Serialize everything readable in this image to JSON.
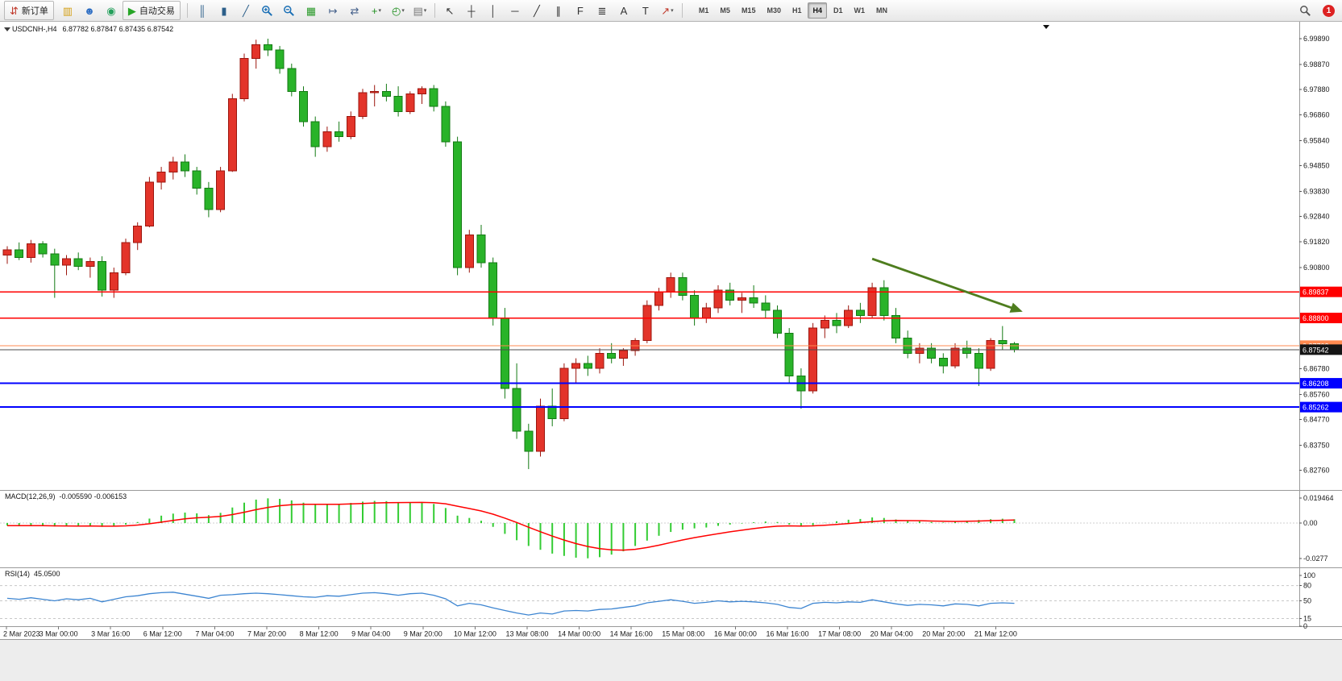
{
  "toolbar": {
    "new_order": {
      "label": "新订单",
      "icon": {
        "name": "new-order-icon",
        "glyph": "⇵",
        "color": "#c0392b"
      }
    },
    "quick_icons": [
      {
        "name": "coins-icon",
        "glyph": "▥",
        "color": "#d4a017"
      },
      {
        "name": "profile-icon",
        "glyph": "☻",
        "color": "#2f6fc4"
      },
      {
        "name": "signal-icon",
        "glyph": "◉",
        "color": "#25a05c"
      }
    ],
    "auto_trading": {
      "label": "自动交易",
      "icon": {
        "name": "auto-trading-icon",
        "glyph": "▶",
        "color": "#27a527"
      }
    },
    "chart_tools": [
      {
        "name": "bar-chart-icon",
        "glyph": "║",
        "color": "#2c5f8a"
      },
      {
        "name": "candlestick-chart-icon",
        "glyph": "▮",
        "color": "#2c5f8a"
      },
      {
        "name": "line-chart-icon",
        "glyph": "╱",
        "color": "#2c5f8a"
      },
      {
        "name": "zoom-in-icon",
        "glyph": "svg-zoom-in",
        "color": "#1a6fb5"
      },
      {
        "name": "zoom-out-icon",
        "glyph": "svg-zoom-out",
        "color": "#1a6fb5"
      },
      {
        "name": "tile-windows-icon",
        "glyph": "▦",
        "color": "#2a9a2a"
      },
      {
        "name": "auto-scroll-icon",
        "glyph": "↦",
        "color": "#44608a"
      },
      {
        "name": "chart-shift-icon",
        "glyph": "⇄",
        "color": "#44608a"
      },
      {
        "name": "new-chart-icon",
        "glyph": "+",
        "color": "#1f8f1f",
        "dropdown": true
      },
      {
        "name": "profiles-icon",
        "glyph": "◴",
        "color": "#1f8f1f",
        "dropdown": true
      },
      {
        "name": "templates-icon",
        "glyph": "▤",
        "color": "#777777",
        "dropdown": true
      }
    ],
    "draw_tools": [
      {
        "name": "cursor-icon",
        "glyph": "↖",
        "color": "#333333"
      },
      {
        "name": "crosshair-icon",
        "glyph": "┼",
        "color": "#333333"
      },
      {
        "name": "vertical-line-icon",
        "glyph": "│",
        "color": "#333333"
      },
      {
        "name": "horizontal-line-icon",
        "glyph": "─",
        "color": "#333333"
      },
      {
        "name": "trendline-icon",
        "glyph": "╱",
        "color": "#333333"
      },
      {
        "name": "channel-icon",
        "glyph": "∥",
        "color": "#333333"
      },
      {
        "name": "fibonacci-icon",
        "glyph": "F",
        "color": "#333333"
      },
      {
        "name": "objects-list-icon",
        "glyph": "≣",
        "color": "#333333"
      },
      {
        "name": "text-icon",
        "glyph": "A",
        "color": "#333333"
      },
      {
        "name": "text-label-icon",
        "glyph": "T",
        "color": "#333333"
      },
      {
        "name": "arrow-objects-icon",
        "glyph": "↗",
        "color": "#c0392b",
        "dropdown": true
      }
    ],
    "timeframes": {
      "options": [
        "M1",
        "M5",
        "M15",
        "M30",
        "H1",
        "H4",
        "D1",
        "W1",
        "MN"
      ],
      "active": "H4"
    },
    "notifications": {
      "count": "1"
    }
  },
  "chart": {
    "symbol_period": "USDCNH-,H4",
    "ohlc": "6.87782 6.87847 6.87435 6.87542"
  },
  "chart_data": {
    "type": "candlestick",
    "symbol": "USDCNH-",
    "timeframe": "H4",
    "up_color": "#e3342a",
    "down_color": "#29b329",
    "candles": [
      [
        6.913,
        6.9165,
        6.9095,
        6.915
      ],
      [
        6.915,
        6.918,
        6.911,
        6.912
      ],
      [
        6.912,
        6.919,
        6.91,
        6.9175
      ],
      [
        6.9175,
        6.9185,
        6.912,
        6.9135
      ],
      [
        6.9135,
        6.9155,
        6.896,
        6.909
      ],
      [
        6.909,
        6.913,
        6.905,
        6.9115
      ],
      [
        6.9115,
        6.914,
        6.907,
        6.9085
      ],
      [
        6.9085,
        6.912,
        6.904,
        6.9105
      ],
      [
        6.9105,
        6.9125,
        6.8965,
        6.899
      ],
      [
        6.899,
        6.908,
        6.896,
        6.906
      ],
      [
        6.906,
        6.9195,
        6.905,
        6.918
      ],
      [
        6.918,
        6.926,
        6.915,
        6.9245
      ],
      [
        6.9245,
        6.944,
        6.924,
        6.942
      ],
      [
        6.942,
        6.948,
        6.939,
        6.946
      ],
      [
        6.946,
        6.952,
        6.943,
        6.95
      ],
      [
        6.95,
        6.953,
        6.944,
        6.9465
      ],
      [
        6.9465,
        6.948,
        6.937,
        6.9395
      ],
      [
        6.9395,
        6.942,
        6.928,
        6.931
      ],
      [
        6.931,
        6.948,
        6.93,
        6.9465
      ],
      [
        6.9465,
        6.977,
        6.946,
        6.975
      ],
      [
        6.975,
        6.993,
        6.974,
        6.991
      ],
      [
        6.991,
        6.9985,
        6.987,
        6.9965
      ],
      [
        6.9965,
        6.9989,
        6.992,
        6.9945
      ],
      [
        6.9945,
        6.996,
        6.985,
        6.987
      ],
      [
        6.987,
        6.989,
        6.976,
        6.978
      ],
      [
        6.978,
        6.98,
        6.964,
        6.966
      ],
      [
        6.966,
        6.968,
        6.952,
        6.956
      ],
      [
        6.956,
        6.964,
        6.954,
        6.962
      ],
      [
        6.962,
        6.966,
        6.958,
        6.96
      ],
      [
        6.96,
        6.97,
        6.959,
        6.968
      ],
      [
        6.968,
        6.979,
        6.967,
        6.9775
      ],
      [
        6.9775,
        6.9805,
        6.972,
        6.978
      ],
      [
        6.978,
        6.981,
        6.974,
        6.976
      ],
      [
        6.976,
        6.98,
        6.968,
        6.97
      ],
      [
        6.97,
        6.978,
        6.969,
        6.977
      ],
      [
        6.977,
        6.98,
        6.973,
        6.979
      ],
      [
        6.979,
        6.9805,
        6.97,
        6.972
      ],
      [
        6.972,
        6.974,
        6.956,
        6.958
      ],
      [
        6.958,
        6.96,
        6.905,
        6.908
      ],
      [
        6.908,
        6.923,
        6.906,
        6.921
      ],
      [
        6.921,
        6.925,
        6.908,
        6.91
      ],
      [
        6.91,
        6.912,
        6.885,
        6.888
      ],
      [
        6.888,
        6.892,
        6.856,
        6.86
      ],
      [
        6.86,
        6.87,
        6.84,
        6.843
      ],
      [
        6.843,
        6.846,
        6.828,
        6.835
      ],
      [
        6.835,
        6.856,
        6.833,
        6.853
      ],
      [
        6.853,
        6.86,
        6.845,
        6.848
      ],
      [
        6.848,
        6.87,
        6.847,
        6.868
      ],
      [
        6.868,
        6.872,
        6.862,
        6.87
      ],
      [
        6.87,
        6.873,
        6.865,
        6.868
      ],
      [
        6.868,
        6.876,
        6.866,
        6.874
      ],
      [
        6.874,
        6.878,
        6.87,
        6.872
      ],
      [
        6.872,
        6.876,
        6.869,
        6.875
      ],
      [
        6.875,
        6.88,
        6.873,
        6.879
      ],
      [
        6.879,
        6.895,
        6.878,
        6.893
      ],
      [
        6.893,
        6.9,
        6.891,
        6.8985
      ],
      [
        6.8985,
        6.906,
        6.896,
        6.904
      ],
      [
        6.904,
        6.906,
        6.895,
        6.897
      ],
      [
        6.897,
        6.899,
        6.885,
        6.888
      ],
      [
        6.888,
        6.894,
        6.886,
        6.892
      ],
      [
        6.892,
        6.901,
        6.89,
        6.899
      ],
      [
        6.899,
        6.902,
        6.893,
        6.895
      ],
      [
        6.895,
        6.898,
        6.89,
        6.896
      ],
      [
        6.896,
        6.901,
        6.892,
        6.894
      ],
      [
        6.894,
        6.897,
        6.888,
        6.891
      ],
      [
        6.891,
        6.893,
        6.88,
        6.882
      ],
      [
        6.882,
        6.884,
        6.862,
        6.865
      ],
      [
        6.865,
        6.868,
        6.852,
        6.859
      ],
      [
        6.859,
        6.886,
        6.858,
        6.884
      ],
      [
        6.884,
        6.889,
        6.88,
        6.887
      ],
      [
        6.887,
        6.89,
        6.882,
        6.885
      ],
      [
        6.885,
        6.893,
        6.884,
        6.891
      ],
      [
        6.891,
        6.894,
        6.886,
        6.889
      ],
      [
        6.889,
        6.902,
        6.888,
        6.9
      ],
      [
        6.9,
        6.903,
        6.887,
        6.889
      ],
      [
        6.889,
        6.892,
        6.878,
        6.88
      ],
      [
        6.88,
        6.883,
        6.872,
        6.874
      ],
      [
        6.874,
        6.878,
        6.87,
        6.876
      ],
      [
        6.876,
        6.878,
        6.87,
        6.872
      ],
      [
        6.872,
        6.874,
        6.866,
        6.869
      ],
      [
        6.869,
        6.878,
        6.868,
        6.876
      ],
      [
        6.876,
        6.879,
        6.872,
        6.874
      ],
      [
        6.874,
        6.876,
        6.861,
        6.868
      ],
      [
        6.868,
        6.88,
        6.867,
        6.879
      ],
      [
        6.879,
        6.8848,
        6.8755,
        6.8778
      ],
      [
        6.87782,
        6.87847,
        6.87435,
        6.87542
      ]
    ],
    "price_axis_labels": [
      "6.99890",
      "6.98870",
      "6.97880",
      "6.96860",
      "6.95840",
      "6.94850",
      "6.93830",
      "6.92840",
      "6.91820",
      "6.90800",
      "6.86780",
      "6.85760",
      "6.84770",
      "6.83750",
      "6.82760"
    ],
    "levels": [
      {
        "price": 6.89837,
        "label": "6.89837",
        "color": "#ff0000",
        "width": 1.4
      },
      {
        "price": 6.888,
        "label": "6.88800",
        "color": "#ff0000",
        "width": 1.4
      },
      {
        "price": 6.87702,
        "label": "6.87702",
        "color": "#ff8a50",
        "width": 1.2
      },
      {
        "price": 6.86208,
        "label": "6.86208",
        "color": "#0000ff",
        "width": 1.8
      },
      {
        "price": 6.85262,
        "label": "6.85262",
        "color": "#0000ff",
        "width": 1.8
      }
    ],
    "current_price": {
      "price": 6.87542,
      "label": "6.87542",
      "line_color": "#4d4d4d",
      "badge_bg": "#141414"
    },
    "trend_arrow": {
      "from_bar": 73,
      "from_price": 6.9115,
      "to_bar": 85.7,
      "to_price": 6.8905,
      "color": "#4e7d1e"
    },
    "macd": {
      "name": "MACD(12,26,9)",
      "values": "-0.005590 -0.006153",
      "axis_labels": [
        "0.019464",
        "0.00",
        "-0.0277"
      ],
      "histogram_color": "#33cc33",
      "signal_color": "#ff0000",
      "histogram": [
        -0.002,
        -0.0024,
        -0.002,
        -0.0022,
        -0.0027,
        -0.0024,
        -0.0026,
        -0.0022,
        -0.003,
        -0.0026,
        -0.0012,
        0.0008,
        0.0035,
        0.0058,
        0.0074,
        0.0082,
        0.0076,
        0.0062,
        0.008,
        0.0122,
        0.016,
        0.0184,
        0.0194,
        0.019,
        0.0178,
        0.016,
        0.0146,
        0.0146,
        0.015,
        0.0158,
        0.0168,
        0.0174,
        0.0172,
        0.0163,
        0.0162,
        0.0165,
        0.015,
        0.0118,
        0.0058,
        0.004,
        0.0018,
        -0.003,
        -0.0085,
        -0.0135,
        -0.018,
        -0.021,
        -0.024,
        -0.0258,
        -0.0272,
        -0.0277,
        -0.0268,
        -0.0248,
        -0.0222,
        -0.018,
        -0.0138,
        -0.01,
        -0.007,
        -0.0052,
        -0.0042,
        -0.0035,
        -0.0022,
        -0.0012,
        -0.0004,
        0.0006,
        0.0012,
        0.0008,
        -0.0012,
        -0.0028,
        -0.0018,
        0.0002,
        0.0014,
        0.0026,
        0.0032,
        0.0044,
        0.004,
        0.0028,
        0.0018,
        0.0014,
        0.0008,
        0.0004,
        0.001,
        0.0018,
        0.0024,
        0.003,
        0.0034,
        0.003
      ]
    },
    "rsi": {
      "name": "RSI(14)",
      "value": "45.0500",
      "axis_labels": [
        "100",
        "80",
        "50",
        "15",
        "0"
      ],
      "levels": [
        80,
        50,
        15
      ],
      "line_color": "#3d85d1",
      "values": [
        55,
        53,
        56,
        53,
        50,
        54,
        52,
        55,
        48,
        53,
        58,
        60,
        64,
        66,
        67,
        63,
        59,
        55,
        61,
        62,
        64,
        65,
        64,
        62,
        60,
        58,
        57,
        60,
        59,
        62,
        65,
        66,
        64,
        61,
        64,
        65,
        61,
        54,
        40,
        45,
        42,
        36,
        31,
        26,
        22,
        26,
        24,
        30,
        31,
        30,
        33,
        34,
        37,
        40,
        46,
        49,
        52,
        49,
        45,
        47,
        50,
        48,
        49,
        48,
        46,
        43,
        37,
        35,
        45,
        47,
        46,
        48,
        47,
        52,
        48,
        44,
        41,
        43,
        42,
        40,
        44,
        43,
        40,
        45,
        46,
        45.05
      ]
    },
    "time_labels": [
      "2 Mar 2023",
      "3 Mar 00:00",
      "3 Mar 16:00",
      "6 Mar 12:00",
      "7 Mar 04:00",
      "7 Mar 20:00",
      "8 Mar 12:00",
      "9 Mar 04:00",
      "9 Mar 20:00",
      "10 Mar 12:00",
      "13 Mar 08:00",
      "14 Mar 00:00",
      "14 Mar 16:00",
      "15 Mar 08:00",
      "16 Mar 00:00",
      "16 Mar 16:00",
      "17 Mar 08:00",
      "20 Mar 04:00",
      "20 Mar 20:00",
      "21 Mar 12:00"
    ]
  }
}
